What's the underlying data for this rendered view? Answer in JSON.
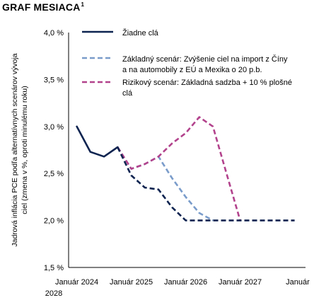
{
  "title": "GRAF MESIACA",
  "title_footnote": "1",
  "chart_data": {
    "type": "line",
    "ylabel": "Jadrová inflácia PCE podľa alternatívnych scenárov vývoja ciel (zmena v %, oproti minulému roku)",
    "ylabel_lines": [
      "Jadrová inflácia PCE podľa alternatívnych scenárov vývoja",
      "ciel (zmena v %, oproti minulému roku)"
    ],
    "xlabel": "",
    "x_tick_labels": [
      "Január 2024",
      "Január 2025",
      "Január 2026",
      "Január 2027",
      "Január 2028"
    ],
    "x_tick_positions": [
      2024,
      2025,
      2026,
      2027,
      2028
    ],
    "xlim": [
      2023.85,
      2028.2
    ],
    "ylim": [
      1.5,
      4.0
    ],
    "y_ticks": [
      1.5,
      2.0,
      2.5,
      3.0,
      3.5,
      4.0
    ],
    "y_tick_labels": [
      "1,5 %",
      "2,0 %",
      "2,5 %",
      "3,0 %",
      "3,5 %",
      "4,0 %"
    ],
    "legend_position": "top-right",
    "series": [
      {
        "name": "Žiadne clá",
        "color": "#0d2350",
        "style": "solid",
        "x": [
          2024.0,
          2024.25,
          2024.5,
          2024.75
        ],
        "y": [
          3.0,
          2.73,
          2.68,
          2.78
        ]
      },
      {
        "name": "Žiadne clá",
        "color": "#0d2350",
        "style": "dashed",
        "x": [
          2024.75,
          2025.0,
          2025.25,
          2025.5,
          2025.75,
          2026.0,
          2026.25,
          2026.5,
          2026.75,
          2027.0,
          2027.25,
          2027.5,
          2027.75,
          2028.0
        ],
        "y": [
          2.78,
          2.48,
          2.35,
          2.33,
          2.14,
          2.0,
          2.0,
          2.0,
          2.0,
          2.0,
          2.0,
          2.0,
          2.0,
          2.0
        ]
      },
      {
        "name": "Základný scenár: Zvýšenie ciel na import z Číny a na automobily z EÚ a Mexika o 20 p.b.",
        "color": "#7a9ccb",
        "style": "dashed",
        "x": [
          2024.75,
          2025.0,
          2025.25,
          2025.5,
          2025.75,
          2026.0,
          2026.25,
          2026.5
        ],
        "y": [
          2.78,
          2.55,
          2.6,
          2.68,
          2.45,
          2.25,
          2.08,
          2.0
        ]
      },
      {
        "name": "Rizikový scenár: Základná sadzba + 10 % plošné clá",
        "color": "#b2428c",
        "style": "dashed",
        "x": [
          2024.75,
          2025.0,
          2025.25,
          2025.5,
          2025.75,
          2026.0,
          2026.25,
          2026.5,
          2026.75,
          2027.0
        ],
        "y": [
          2.78,
          2.55,
          2.6,
          2.68,
          2.82,
          2.93,
          3.1,
          3.0,
          2.5,
          2.0
        ]
      }
    ]
  },
  "legend": [
    {
      "lines": [
        "Žiadne clá"
      ],
      "color": "#0d2350",
      "style": "solid"
    },
    {
      "lines": [
        "Základný scenár: Zvýšenie ciel na import z Číny",
        "a na automobily z EÚ a Mexika o 20 p.b."
      ],
      "color": "#7a9ccb",
      "style": "dashed"
    },
    {
      "lines": [
        "Rizikový scenár: Základná sadzba + 10 % plošné",
        "clá"
      ],
      "color": "#b2428c",
      "style": "dashed"
    }
  ]
}
